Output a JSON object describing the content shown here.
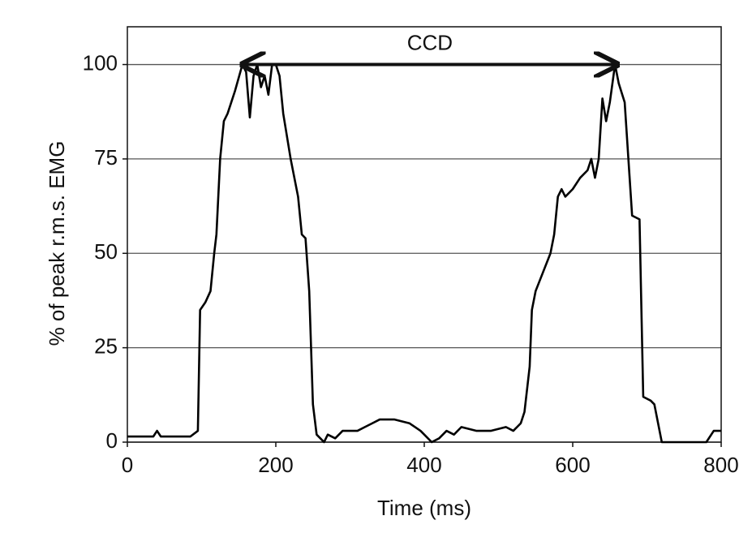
{
  "chart_data": {
    "type": "line",
    "xlabel": "Time (ms)",
    "ylabel": "% of peak r.m.s. EMG",
    "x": [
      0,
      35,
      40,
      45,
      85,
      95,
      98,
      105,
      112,
      117,
      120,
      125,
      130,
      135,
      140,
      145,
      155,
      160,
      165,
      170,
      175,
      180,
      185,
      190,
      195,
      200,
      205,
      210,
      220,
      230,
      235,
      240,
      245,
      250,
      255,
      260,
      265,
      270,
      280,
      290,
      310,
      320,
      330,
      340,
      360,
      380,
      395,
      400,
      410,
      420,
      430,
      440,
      450,
      470,
      490,
      510,
      520,
      530,
      535,
      542,
      545,
      550,
      560,
      570,
      575,
      580,
      585,
      590,
      600,
      610,
      620,
      625,
      630,
      635,
      640,
      645,
      650,
      657,
      662,
      670,
      675,
      680,
      690,
      695,
      705,
      710,
      715,
      720,
      780,
      790,
      800
    ],
    "series": [
      {
        "color": "#000000",
        "values": [
          1.5,
          1.5,
          3,
          1.5,
          1.5,
          3,
          35,
          37,
          40,
          50,
          55,
          75,
          85,
          87,
          90,
          93,
          100,
          98,
          86,
          97,
          100,
          94,
          97,
          92,
          100,
          100,
          97,
          87,
          75,
          65,
          55,
          54,
          40,
          10,
          2,
          1,
          0,
          2,
          1,
          3,
          3,
          4,
          5,
          6,
          6,
          5,
          3,
          2,
          0,
          1,
          3,
          2,
          4,
          3,
          3,
          4,
          3,
          5,
          8,
          20,
          35,
          40,
          45,
          50,
          55,
          65,
          67,
          65,
          67,
          70,
          72,
          75,
          70,
          75,
          91,
          85,
          90,
          100,
          95,
          90,
          75,
          60,
          59,
          12,
          11,
          10,
          5,
          0,
          0,
          3,
          3
        ]
      }
    ],
    "xlim": [
      0,
      800
    ],
    "ylim": [
      0,
      110
    ],
    "xticks": [
      0,
      200,
      400,
      600,
      800
    ],
    "yticks": [
      0,
      25,
      50,
      75,
      100
    ],
    "grid": true,
    "annotations": [
      {
        "text": "CCD",
        "x_start": 155,
        "x_end": 660,
        "y": 100
      }
    ]
  }
}
